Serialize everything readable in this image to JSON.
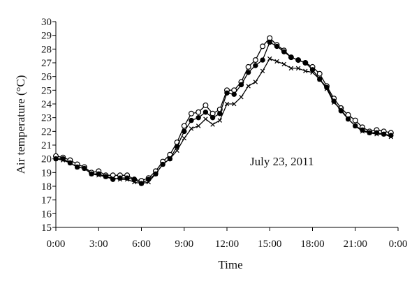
{
  "chart_data": {
    "type": "line",
    "ylabel": "Air temperature (°C)",
    "xlabel": "Time",
    "annotation": "July 23, 2011",
    "ylim": [
      15,
      30
    ],
    "y_ticks": [
      15,
      16,
      17,
      18,
      19,
      20,
      21,
      22,
      23,
      24,
      25,
      26,
      27,
      28,
      29,
      30
    ],
    "xlim_hours": [
      0,
      24
    ],
    "x_ticks": [
      {
        "hour": 0,
        "label": "0:00"
      },
      {
        "hour": 3,
        "label": "3:00"
      },
      {
        "hour": 6,
        "label": "6:00"
      },
      {
        "hour": 9,
        "label": "9:00"
      },
      {
        "hour": 12,
        "label": "12:00"
      },
      {
        "hour": 15,
        "label": "15:00"
      },
      {
        "hour": 18,
        "label": "18:00"
      },
      {
        "hour": 21,
        "label": "21:00"
      },
      {
        "hour": 24,
        "label": "0:00"
      }
    ],
    "grid": false,
    "x": [
      0,
      0.5,
      1,
      1.5,
      2,
      2.5,
      3,
      3.5,
      4,
      4.5,
      5,
      5.5,
      6,
      6.5,
      7,
      7.5,
      8,
      8.5,
      9,
      9.5,
      10,
      10.5,
      11,
      11.5,
      12,
      12.5,
      13,
      13.5,
      14,
      14.5,
      15,
      15.5,
      16,
      16.5,
      17,
      17.5,
      18,
      18.5,
      19,
      19.5,
      20,
      20.5,
      21,
      21.5,
      22,
      22.5,
      23,
      23.5
    ],
    "series": [
      {
        "marker": "open-circle",
        "values": [
          20.2,
          20.1,
          19.9,
          19.6,
          19.4,
          19.0,
          19.1,
          18.8,
          18.8,
          18.8,
          18.8,
          18.5,
          18.4,
          18.6,
          19.1,
          19.8,
          20.3,
          21.2,
          22.4,
          23.3,
          23.4,
          23.9,
          23.3,
          23.6,
          25.0,
          25.0,
          25.6,
          26.7,
          27.2,
          28.2,
          28.8,
          28.3,
          27.9,
          27.4,
          27.2,
          27.0,
          26.7,
          26.2,
          25.3,
          24.4,
          23.7,
          23.2,
          22.8,
          22.3,
          22.0,
          22.1,
          22.0,
          21.9
        ]
      },
      {
        "marker": "filled-circle",
        "values": [
          20.0,
          20.0,
          19.7,
          19.4,
          19.3,
          18.9,
          18.9,
          18.7,
          18.5,
          18.6,
          18.6,
          18.5,
          18.2,
          18.5,
          18.9,
          19.6,
          20.0,
          20.9,
          22.0,
          22.8,
          23.0,
          23.4,
          23.0,
          23.3,
          24.8,
          24.7,
          25.4,
          26.3,
          26.8,
          27.2,
          28.5,
          28.2,
          27.8,
          27.4,
          27.2,
          27.0,
          26.5,
          25.8,
          25.2,
          24.2,
          23.5,
          22.9,
          22.4,
          22.1,
          21.9,
          21.9,
          21.8,
          21.7
        ]
      },
      {
        "marker": "x",
        "values": [
          20.0,
          19.9,
          19.7,
          19.4,
          19.3,
          18.9,
          18.8,
          18.7,
          18.6,
          18.5,
          18.5,
          18.3,
          18.2,
          18.3,
          18.9,
          19.6,
          20.0,
          20.6,
          21.5,
          22.2,
          22.4,
          22.9,
          22.5,
          22.8,
          24.0,
          24.0,
          24.5,
          25.3,
          25.6,
          26.4,
          27.3,
          27.1,
          26.9,
          26.6,
          26.6,
          26.4,
          26.3,
          25.8,
          25.1,
          24.1,
          23.6,
          22.9,
          22.4,
          22.0,
          21.9,
          21.8,
          21.8,
          21.6
        ]
      }
    ]
  }
}
